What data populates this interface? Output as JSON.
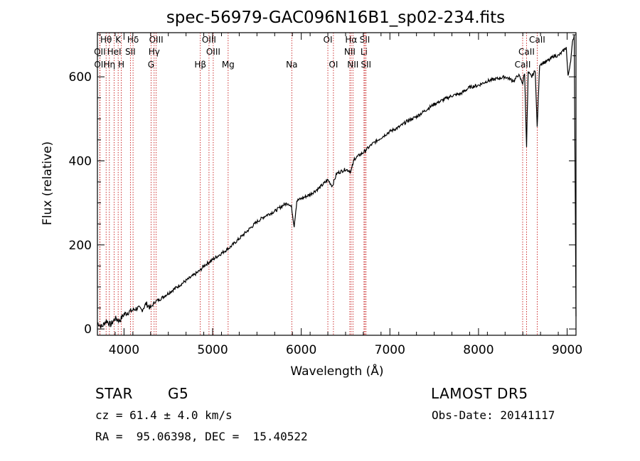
{
  "chart_data": {
    "type": "line",
    "title": "spec-56979-GAC096N16B1_sp02-234.fits",
    "xlabel": "Wavelength (Å)",
    "ylabel": "Flux (relative)",
    "xlim": [
      3700,
      9100
    ],
    "ylim": [
      -15,
      705
    ],
    "xticks": [
      4000,
      5000,
      6000,
      7000,
      8000,
      9000
    ],
    "yticks": [
      0,
      200,
      400,
      600
    ],
    "grid": false,
    "series": [
      {
        "x": [
          3700,
          3750,
          3800,
          3850,
          3900,
          3950,
          4000,
          4050,
          4100,
          4150,
          4200,
          4250,
          4300,
          4350,
          4400,
          4500,
          4600,
          4700,
          4800,
          4861,
          4900,
          5000,
          5100,
          5200,
          5300,
          5400,
          5500,
          5600,
          5700,
          5800,
          5850,
          5890,
          5920,
          5950,
          6000,
          6100,
          6200,
          6300,
          6350,
          6400,
          6500,
          6560,
          6600,
          6700,
          6800,
          6900,
          7000,
          7100,
          7200,
          7300,
          7400,
          7500,
          7600,
          7700,
          7800,
          7900,
          8000,
          8100,
          8200,
          8300,
          8400,
          8450,
          8498,
          8520,
          8542,
          8560,
          8600,
          8640,
          8662,
          8690,
          8750,
          8800,
          8850,
          8900,
          8950,
          8990,
          9010,
          9040,
          9060,
          9080,
          9100
        ],
        "values": [
          15,
          5,
          20,
          10,
          25,
          20,
          35,
          40,
          45,
          50,
          45,
          60,
          50,
          65,
          70,
          85,
          100,
          115,
          130,
          140,
          150,
          165,
          180,
          195,
          215,
          235,
          255,
          270,
          280,
          295,
          300,
          290,
          245,
          305,
          310,
          320,
          335,
          355,
          340,
          370,
          380,
          375,
          405,
          420,
          440,
          455,
          470,
          480,
          495,
          505,
          520,
          535,
          545,
          555,
          560,
          575,
          580,
          590,
          595,
          600,
          590,
          605,
          585,
          610,
          435,
          610,
          600,
          615,
          480,
          630,
          635,
          640,
          650,
          650,
          660,
          670,
          600,
          640,
          680,
          700,
          30
        ]
      }
    ],
    "lines": [
      {
        "label": "Hθ",
        "row": 0,
        "wl": 3798
      },
      {
        "label": "K",
        "row": 0,
        "wl": 3934
      },
      {
        "label": "Hδ",
        "row": 0,
        "wl": 4102
      },
      {
        "label": "OIII",
        "row": 0,
        "wl": 4363
      },
      {
        "label": "OIII",
        "row": 0,
        "wl": 4959
      },
      {
        "label": "OI",
        "row": 0,
        "wl": 6300
      },
      {
        "label": "Hα",
        "row": 0,
        "wl": 6563
      },
      {
        "label": "SII",
        "row": 0,
        "wl": 6717
      },
      {
        "label": "CaII",
        "row": 0,
        "wl": 8662
      },
      {
        "label": "OII",
        "row": 1,
        "wl": 3727
      },
      {
        "label": "HeI",
        "row": 1,
        "wl": 3889
      },
      {
        "label": "SII",
        "row": 1,
        "wl": 4072
      },
      {
        "label": "Hγ",
        "row": 1,
        "wl": 4340
      },
      {
        "label": "OIII",
        "row": 1,
        "wl": 5007
      },
      {
        "label": "NII",
        "row": 1,
        "wl": 6548
      },
      {
        "label": "Li",
        "row": 1,
        "wl": 6708
      },
      {
        "label": "CaII",
        "row": 1,
        "wl": 8542
      },
      {
        "label": "OII",
        "row": 2,
        "wl": 3729
      },
      {
        "label": "Hη",
        "row": 2,
        "wl": 3835
      },
      {
        "label": "H",
        "row": 2,
        "wl": 3969
      },
      {
        "label": "G",
        "row": 2,
        "wl": 4305
      },
      {
        "label": "Hβ",
        "row": 2,
        "wl": 4861
      },
      {
        "label": "Mg",
        "row": 2,
        "wl": 5175
      },
      {
        "label": "Na",
        "row": 2,
        "wl": 5893
      },
      {
        "label": "OI",
        "row": 2,
        "wl": 6363
      },
      {
        "label": "NII",
        "row": 2,
        "wl": 6583
      },
      {
        "label": "SII",
        "row": 2,
        "wl": 6731
      },
      {
        "label": "CaII",
        "row": 2,
        "wl": 8498
      }
    ],
    "line_color": "#c00000",
    "spectrum_color": "#000000"
  },
  "info": {
    "object_class": "STAR",
    "subclass": "G5",
    "survey": "LAMOST DR5",
    "cz": "cz = 61.4 ± 4.0 km/s",
    "obs_date": "Obs-Date: 20141117",
    "coords": "RA =  95.06398, DEC =  15.40522"
  }
}
